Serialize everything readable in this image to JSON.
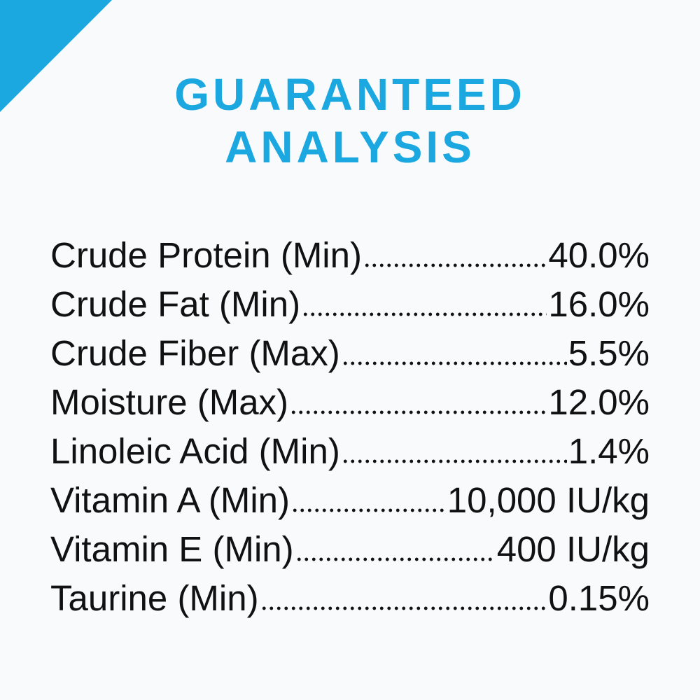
{
  "header": {
    "title": [
      "GUARANTEED",
      "ANALYSIS"
    ]
  },
  "table": {
    "rows": [
      [
        "Crude Protein (Min)",
        "40.0%"
      ],
      [
        "Crude Fat (Min)",
        "16.0%"
      ],
      [
        "Crude Fiber (Max)",
        "5.5%"
      ],
      [
        "Moisture (Max)",
        "12.0%"
      ],
      [
        "Linoleic Acid (Min)",
        "1.4%"
      ],
      [
        "Vitamin A (Min)",
        "10,000 IU/kg"
      ],
      [
        "Vitamin E (Min)",
        "400 IU/kg"
      ],
      [
        "Taurine (Min)",
        "0.15%"
      ]
    ]
  }
}
